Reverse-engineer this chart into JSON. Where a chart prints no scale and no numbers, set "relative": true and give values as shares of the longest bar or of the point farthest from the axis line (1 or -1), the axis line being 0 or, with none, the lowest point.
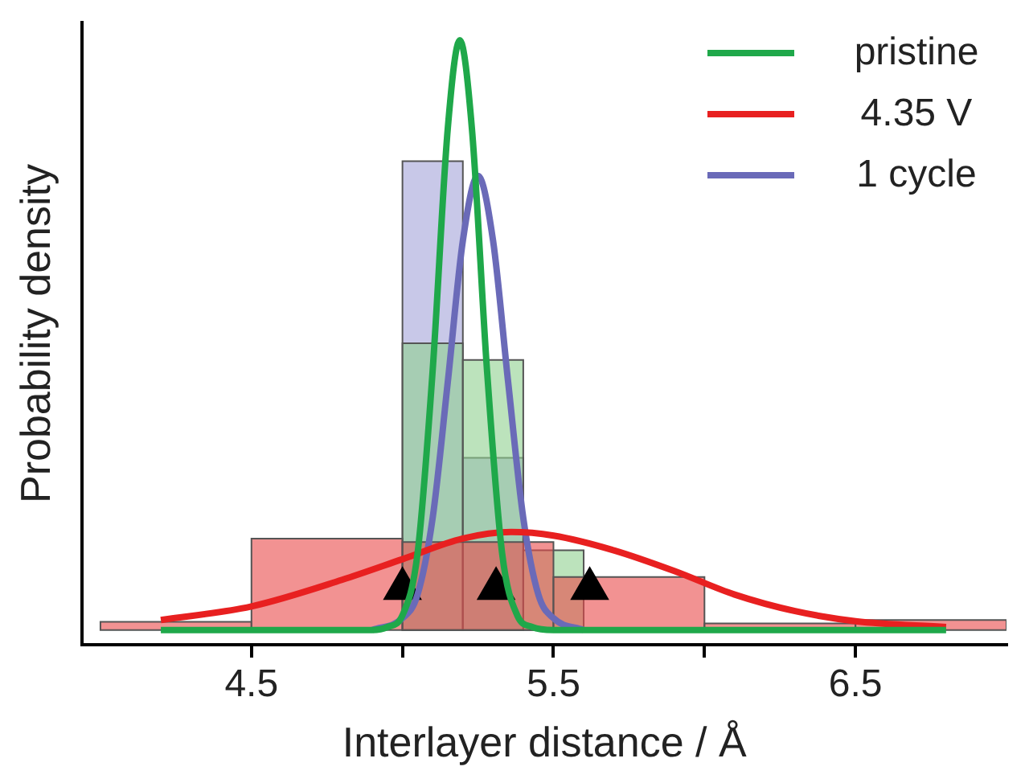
{
  "chart_data": {
    "type": "histogram",
    "xlabel": "Interlayer distance / Å",
    "ylabel": "Probability density",
    "relative": true,
    "xlim": [
      3.94,
      7.0
    ],
    "xticks": [
      4.5,
      {
        "value": 5.0,
        "label": null
      },
      5.5,
      {
        "value": 6.0,
        "label": null
      },
      6.5
    ],
    "legend": "top right",
    "series": [
      {
        "color": "#a4a4d8",
        "bins": [
          5.0,
          5.2,
          5.4
        ],
        "values": [
          0.795,
          0.292
        ]
      },
      {
        "color": "#8fd08f",
        "bins": [
          5.0,
          5.2,
          5.4,
          5.6
        ],
        "values": [
          0.486,
          0.458,
          0.135
        ]
      },
      {
        "color": "#ea4a4a",
        "bins": [
          4.0,
          4.5,
          5.0,
          5.5,
          6.0,
          6.5,
          7.0
        ],
        "values": [
          0.014,
          0.155,
          0.149,
          0.09,
          0.011,
          0.017
        ]
      },
      {
        "type": "line",
        "name": "pristine",
        "color": "#1fa84a",
        "x": [
          4.2,
          4.9,
          4.95,
          5.0,
          5.05,
          5.1,
          5.15,
          5.19,
          5.23,
          5.28,
          5.33,
          5.38,
          5.43,
          5.5,
          6.8
        ],
        "values": [
          0,
          0,
          0.005,
          0.025,
          0.13,
          0.44,
          0.85,
          1,
          0.85,
          0.44,
          0.13,
          0.025,
          0.005,
          0,
          0
        ]
      },
      {
        "type": "line",
        "name": "4.35 V",
        "color": "#e82020",
        "x": [
          4.2,
          4.5,
          4.8,
          5.0,
          5.2,
          5.36,
          5.5,
          5.7,
          5.9,
          6.1,
          6.3,
          6.5,
          6.8
        ],
        "values": [
          0.017,
          0.04,
          0.085,
          0.12,
          0.155,
          0.166,
          0.16,
          0.135,
          0.1,
          0.06,
          0.032,
          0.015,
          0.005
        ]
      },
      {
        "type": "line",
        "name": "1 cycle",
        "color": "#6a6ab8",
        "x": [
          4.9,
          5.0,
          5.05,
          5.1,
          5.15,
          5.2,
          5.25,
          5.3,
          5.35,
          5.4,
          5.45,
          5.5,
          5.6
        ],
        "values": [
          0,
          0.02,
          0.06,
          0.19,
          0.42,
          0.66,
          0.77,
          0.66,
          0.42,
          0.19,
          0.06,
          0.02,
          0
        ]
      },
      {
        "type": "scatter",
        "color": "#000000",
        "marker": "triangle",
        "x": [
          5.0,
          5.31,
          5.62
        ],
        "values": [
          0.07,
          0.07,
          0.07
        ]
      }
    ]
  }
}
